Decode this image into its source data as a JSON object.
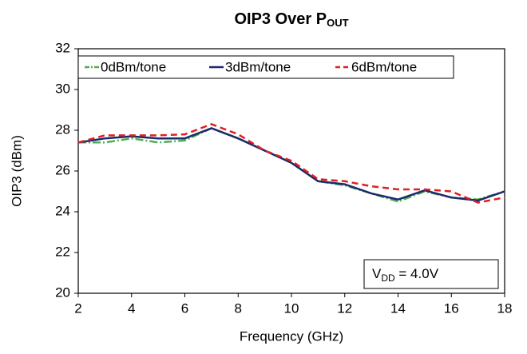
{
  "chart_data": {
    "type": "line",
    "title": "OIP3 Over P",
    "title_subscript": "OUT",
    "x_label": "Frequency (GHz)",
    "y_label": "OIP3 (dBm)",
    "x": [
      2,
      3,
      4,
      5,
      6,
      7,
      8,
      9,
      10,
      11,
      12,
      13,
      14,
      15,
      16,
      17,
      18
    ],
    "series": [
      {
        "name": "0dBm/tone",
        "color": "#4caf50",
        "dash": "10 3 2 3",
        "values": [
          27.4,
          27.4,
          27.6,
          27.4,
          27.5,
          28.1,
          27.6,
          27.0,
          26.4,
          25.5,
          25.3,
          24.9,
          24.5,
          25.0,
          24.7,
          24.6,
          25.0
        ]
      },
      {
        "name": "3dBm/tone",
        "color": "#1a2a6c",
        "dash": "none",
        "values": [
          27.4,
          27.6,
          27.7,
          27.6,
          27.6,
          28.1,
          27.6,
          27.0,
          26.4,
          25.5,
          25.35,
          24.9,
          24.6,
          25.05,
          24.7,
          24.55,
          25.0
        ]
      },
      {
        "name": "6dBm/tone",
        "color": "#e02020",
        "dash": "8 5",
        "values": [
          27.4,
          27.75,
          27.75,
          27.75,
          27.8,
          28.3,
          27.8,
          27.0,
          26.5,
          25.6,
          25.5,
          25.25,
          25.1,
          25.1,
          25.0,
          24.45,
          24.7
        ]
      }
    ],
    "xlim": [
      2,
      18
    ],
    "xticks": [
      2,
      4,
      6,
      8,
      10,
      12,
      14,
      16,
      18
    ],
    "ylim": [
      20,
      32
    ],
    "yticks": [
      20,
      22,
      24,
      26,
      28,
      30,
      32
    ],
    "grid": false,
    "legend": "top",
    "annotation": {
      "main": "V",
      "sub": "DD",
      "rest": " = 4.0V"
    }
  }
}
